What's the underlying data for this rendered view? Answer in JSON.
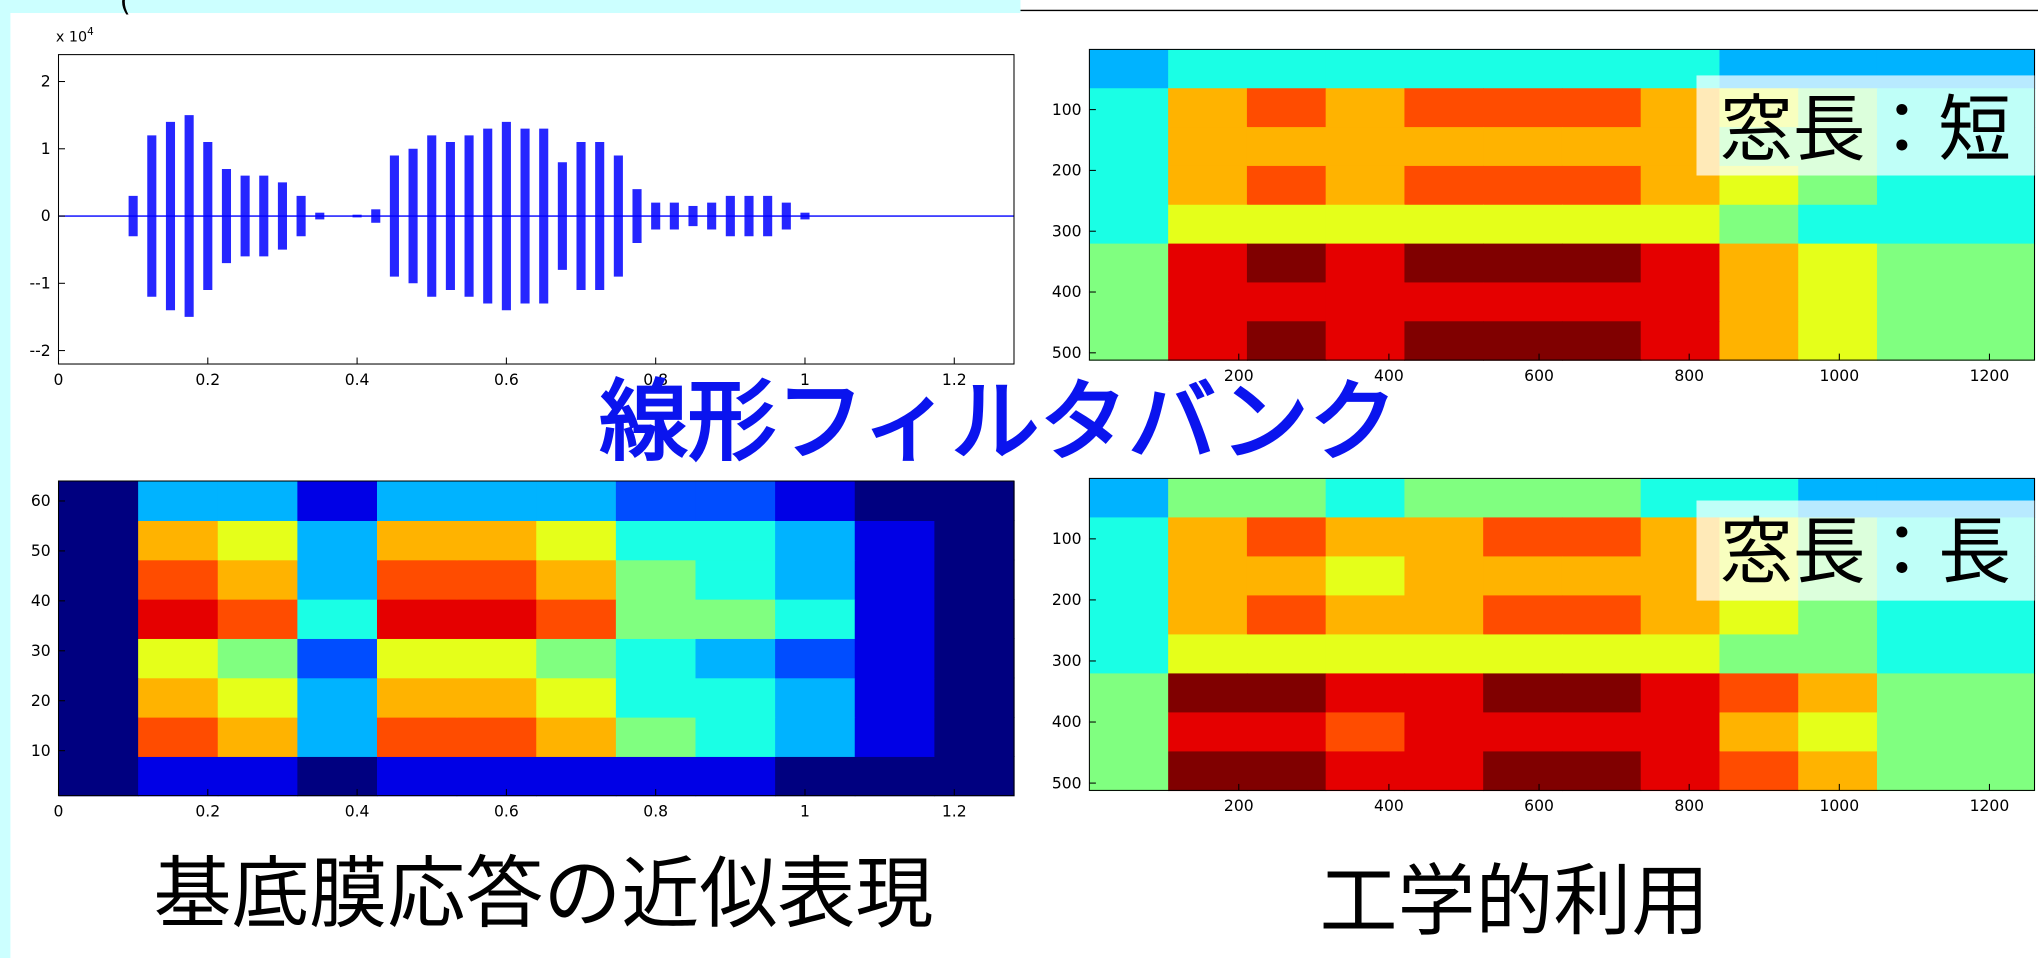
{
  "slide": {
    "corner_text": "(",
    "center_label": "線形フィルタバンク",
    "captions": [
      "基底膜応答の近似表現",
      "工学的利用"
    ]
  },
  "chart_data": [
    {
      "type": "line",
      "color": "#0000ff",
      "y_multiplier": {
        "base": "x 10",
        "exponent": "4"
      },
      "x": [
        0,
        0.025,
        0.05,
        0.075,
        0.1,
        0.125,
        0.15,
        0.175,
        0.2,
        0.225,
        0.25,
        0.275,
        0.3,
        0.325,
        0.35,
        0.375,
        0.4,
        0.425,
        0.45,
        0.475,
        0.5,
        0.525,
        0.55,
        0.575,
        0.6,
        0.625,
        0.65,
        0.675,
        0.7,
        0.725,
        0.75,
        0.775,
        0.8,
        0.825,
        0.85,
        0.875,
        0.9,
        0.925,
        0.95,
        0.975,
        1.0,
        1.025,
        1.05,
        1.075,
        1.1,
        1.125,
        1.15,
        1.175,
        1.2,
        1.225,
        1.25
      ],
      "values": [
        0,
        0,
        0,
        0,
        0.3,
        1.2,
        1.4,
        1.5,
        1.1,
        0.7,
        0.6,
        0.6,
        0.5,
        0.3,
        0.05,
        0,
        0.02,
        0.1,
        0.9,
        1.0,
        1.2,
        1.1,
        1.2,
        1.3,
        1.4,
        1.3,
        1.3,
        0.8,
        1.1,
        1.1,
        0.9,
        0.4,
        0.2,
        0.2,
        0.15,
        0.2,
        0.3,
        0.3,
        0.3,
        0.2,
        0.05,
        0,
        0,
        0,
        0,
        0,
        0,
        0,
        0,
        0,
        0
      ],
      "xlim": [
        0,
        1.28
      ],
      "xticks": [
        0,
        0.2,
        0.4,
        0.6,
        0.8,
        1,
        1.2
      ],
      "ylim": [
        -2.2,
        2.4
      ],
      "yticks": [
        {
          "value": -2,
          "label": "--2"
        },
        {
          "value": -1,
          "label": "--1"
        },
        0,
        1,
        2
      ]
    },
    {
      "type": "heatmap",
      "annotation": "窓長：短",
      "y_reversed": true,
      "xlim": [
        1,
        1260
      ],
      "xticks": [
        200,
        400,
        600,
        800,
        1000,
        1200
      ],
      "ylim": [
        1,
        512
      ],
      "yticks": [
        100,
        200,
        300,
        400,
        500
      ],
      "z": [
        [
          0.3,
          0.4,
          0.4,
          0.4,
          0.4,
          0.4,
          0.4,
          0.4,
          0.3,
          0.3,
          0.3,
          0.3
        ],
        [
          0.4,
          0.7,
          0.8,
          0.7,
          0.8,
          0.8,
          0.8,
          0.7,
          0.6,
          0.5,
          0.4,
          0.4
        ],
        [
          0.4,
          0.7,
          0.7,
          0.7,
          0.7,
          0.7,
          0.7,
          0.7,
          0.5,
          0.5,
          0.4,
          0.4
        ],
        [
          0.4,
          0.7,
          0.8,
          0.7,
          0.8,
          0.8,
          0.8,
          0.7,
          0.6,
          0.5,
          0.4,
          0.4
        ],
        [
          0.4,
          0.6,
          0.6,
          0.6,
          0.6,
          0.6,
          0.6,
          0.6,
          0.5,
          0.4,
          0.4,
          0.4
        ],
        [
          0.5,
          0.9,
          1,
          0.9,
          1,
          1,
          1,
          0.9,
          0.7,
          0.6,
          0.5,
          0.5
        ],
        [
          0.5,
          0.9,
          0.9,
          0.9,
          0.9,
          0.9,
          0.9,
          0.9,
          0.7,
          0.6,
          0.5,
          0.5
        ],
        [
          0.5,
          0.9,
          1,
          0.9,
          1,
          1,
          1,
          0.9,
          0.7,
          0.6,
          0.5,
          0.5
        ]
      ]
    },
    {
      "type": "heatmap",
      "xlim": [
        0,
        1.28
      ],
      "xticks": [
        0,
        0.2,
        0.4,
        0.6,
        0.8,
        1,
        1.2
      ],
      "ylim": [
        1,
        64
      ],
      "yticks": [
        10,
        20,
        30,
        40,
        50,
        60
      ],
      "z": [
        [
          0,
          0.1,
          0.1,
          0,
          0.1,
          0.1,
          0.1,
          0.1,
          0.1,
          0,
          0,
          0
        ],
        [
          0,
          0.8,
          0.7,
          0.3,
          0.8,
          0.8,
          0.7,
          0.5,
          0.4,
          0.3,
          0.1,
          0
        ],
        [
          0,
          0.7,
          0.6,
          0.3,
          0.7,
          0.7,
          0.6,
          0.4,
          0.4,
          0.3,
          0.1,
          0
        ],
        [
          0,
          0.6,
          0.5,
          0.2,
          0.6,
          0.6,
          0.5,
          0.4,
          0.3,
          0.2,
          0.1,
          0
        ],
        [
          0,
          0.9,
          0.8,
          0.4,
          0.9,
          0.9,
          0.8,
          0.5,
          0.5,
          0.4,
          0.1,
          0
        ],
        [
          0,
          0.8,
          0.7,
          0.3,
          0.8,
          0.8,
          0.7,
          0.5,
          0.4,
          0.3,
          0.1,
          0
        ],
        [
          0,
          0.7,
          0.6,
          0.3,
          0.7,
          0.7,
          0.6,
          0.4,
          0.4,
          0.3,
          0.1,
          0
        ],
        [
          0,
          0.3,
          0.3,
          0.1,
          0.3,
          0.3,
          0.3,
          0.2,
          0.2,
          0.1,
          0,
          0
        ]
      ]
    },
    {
      "type": "heatmap",
      "annotation": "窓長：長",
      "y_reversed": true,
      "xlim": [
        1,
        1260
      ],
      "xticks": [
        200,
        400,
        600,
        800,
        1000,
        1200
      ],
      "ylim": [
        1,
        512
      ],
      "yticks": [
        100,
        200,
        300,
        400,
        500
      ],
      "z": [
        [
          0.3,
          0.5,
          0.5,
          0.4,
          0.5,
          0.5,
          0.5,
          0.4,
          0.4,
          0.3,
          0.3,
          0.3
        ],
        [
          0.4,
          0.7,
          0.8,
          0.7,
          0.7,
          0.8,
          0.8,
          0.7,
          0.6,
          0.5,
          0.4,
          0.4
        ],
        [
          0.4,
          0.7,
          0.7,
          0.6,
          0.7,
          0.7,
          0.7,
          0.7,
          0.6,
          0.5,
          0.4,
          0.4
        ],
        [
          0.4,
          0.7,
          0.8,
          0.7,
          0.7,
          0.8,
          0.8,
          0.7,
          0.6,
          0.5,
          0.4,
          0.4
        ],
        [
          0.4,
          0.6,
          0.6,
          0.6,
          0.6,
          0.6,
          0.6,
          0.6,
          0.5,
          0.5,
          0.4,
          0.4
        ],
        [
          0.5,
          1,
          1,
          0.9,
          0.9,
          1,
          1,
          0.9,
          0.8,
          0.7,
          0.5,
          0.5
        ],
        [
          0.5,
          0.9,
          0.9,
          0.8,
          0.9,
          0.9,
          0.9,
          0.9,
          0.7,
          0.6,
          0.5,
          0.5
        ],
        [
          0.5,
          1,
          1,
          0.9,
          0.9,
          1,
          1,
          0.9,
          0.8,
          0.7,
          0.5,
          0.5
        ]
      ]
    }
  ]
}
